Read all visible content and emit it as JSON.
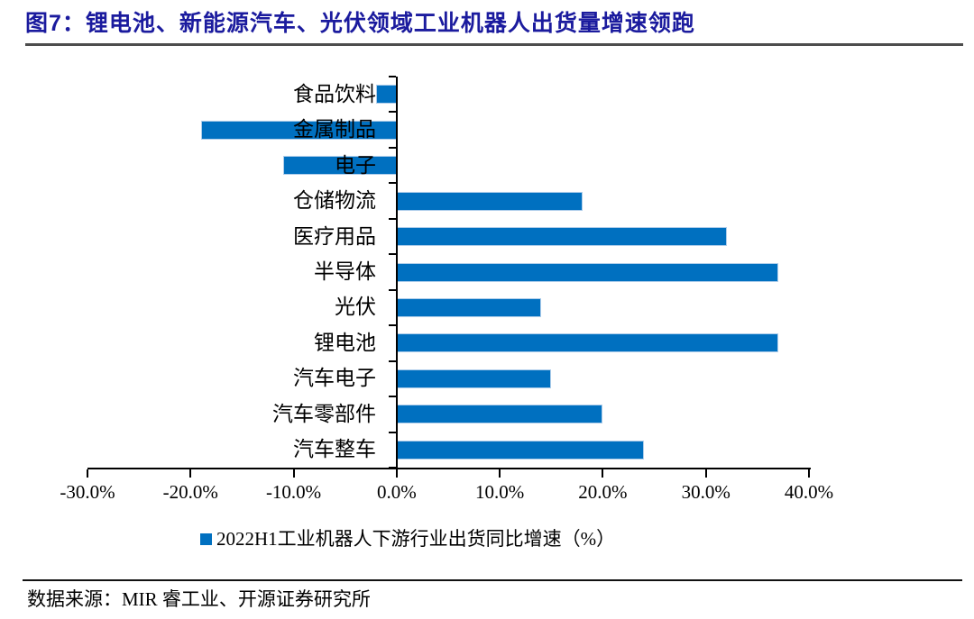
{
  "title": "图7：锂电池、新能源汽车、光伏领域工业机器人出货量增速领跑",
  "chart_data": {
    "type": "bar",
    "orientation": "horizontal",
    "title": "图7：锂电池、新能源汽车、光伏领域工业机器人出货量增速领跑",
    "legend": "2022H1工业机器人下游行业出货同比增速（%）",
    "legend_position": "bottom",
    "categories": [
      "食品饮料",
      "金属制品",
      "电子",
      "仓储物流",
      "医疗用品",
      "半导体",
      "光伏",
      "锂电池",
      "汽车电子",
      "汽车零部件",
      "汽车整车"
    ],
    "values": [
      -2,
      -19,
      -11,
      18,
      32,
      37,
      14,
      37,
      15,
      20,
      24
    ],
    "unit": "%",
    "xlim": [
      -30,
      40
    ],
    "x_tick_values": [
      -30,
      -20,
      -10,
      0,
      10,
      20,
      30,
      40
    ],
    "x_tick_labels": [
      "-30.0%",
      "-20.0%",
      "-10.0%",
      "0.0%",
      "10.0%",
      "20.0%",
      "30.0%",
      "40.0%"
    ],
    "grid": false,
    "bar_color": "#0070C0"
  },
  "colors": {
    "bar": "#0070C0",
    "title": "#1b1b9e",
    "axis": "#000000",
    "title_rule": "#4d4d4d",
    "footer_rule": "#111111"
  },
  "footer": {
    "source": "数据来源：MIR 睿工业、开源证券研究所"
  }
}
